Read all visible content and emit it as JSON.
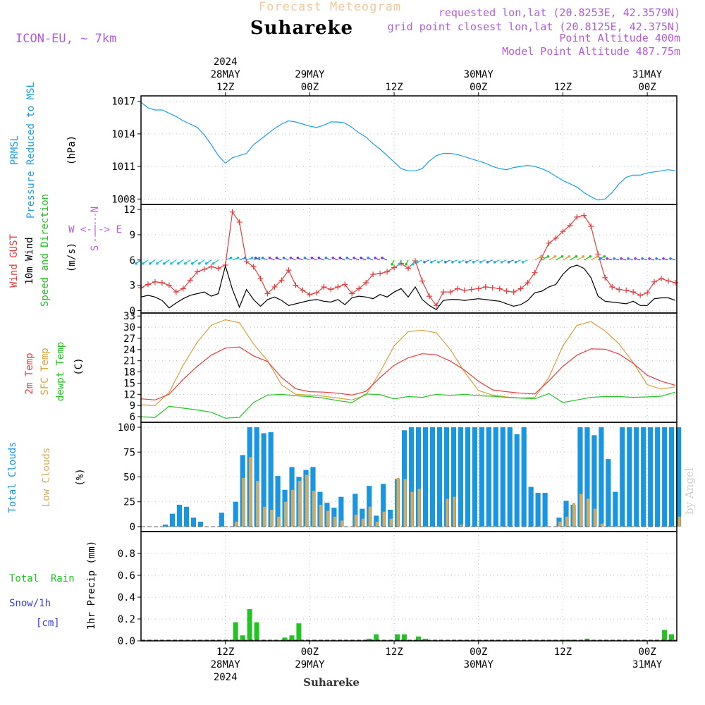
{
  "header": {
    "super_title": "Forecast Meteogram",
    "location": "Suhareke",
    "model": "ICON-EU, ~ 7km",
    "requested": "requested lon,lat (20.8253E, 42.3579N)",
    "grid_point": "grid point closest lon,lat (20.8125E, 42.375N)",
    "point_altitude": "Point Altitude 400m",
    "model_altitude": "Model Point Altitude 487.75m",
    "watermark": "by Angel",
    "footer": "Suhareke"
  },
  "colors": {
    "pressure": "#1a9ee8",
    "gust": "#e63c3c",
    "wind": "#000000",
    "t2m": "#e63c3c",
    "sfc": "#d9a13a",
    "dewpt": "#22c322",
    "total_clouds": "#1a96e0",
    "low_clouds": "#d4aa5c",
    "rain": "#22c322",
    "snow": "#3a3ae6",
    "purple": "#b45adc"
  },
  "time_axis": {
    "top_labels": [
      {
        "h": 12,
        "lines": [
          "2024",
          "28MAY",
          "12Z"
        ]
      },
      {
        "h": 24,
        "lines": [
          "29MAY",
          "00Z"
        ]
      },
      {
        "h": 36,
        "lines": [
          "12Z"
        ]
      },
      {
        "h": 48,
        "lines": [
          "30MAY",
          "00Z"
        ]
      },
      {
        "h": 60,
        "lines": [
          "12Z"
        ]
      },
      {
        "h": 72,
        "lines": [
          "31MAY",
          "00Z"
        ]
      }
    ],
    "bottom_labels": [
      {
        "h": 12,
        "lines": [
          "12Z",
          "28MAY",
          "2024"
        ]
      },
      {
        "h": 24,
        "lines": [
          "00Z",
          "29MAY"
        ]
      },
      {
        "h": 36,
        "lines": [
          "12Z"
        ]
      },
      {
        "h": 48,
        "lines": [
          "00Z",
          "30MAY"
        ]
      },
      {
        "h": 60,
        "lines": [
          "12Z"
        ]
      },
      {
        "h": 72,
        "lines": [
          "00Z",
          "31MAY"
        ]
      }
    ]
  },
  "panel_labels": {
    "pressure": [
      "PRMSL",
      "Pressure Reduced to MSL",
      "(hPa)"
    ],
    "wind": [
      "Wind GUST",
      "10m Wind",
      "Speed and Direction",
      "(m/s)"
    ],
    "compass": [
      "N",
      "S",
      "W <-|-> E"
    ],
    "temp": [
      "2m Temp",
      "SFC Temp",
      "dewpt Temp",
      "(C)"
    ],
    "clouds": [
      "Total Clouds",
      "Low Clouds",
      "(%)"
    ],
    "precip": [
      "Total  Rain",
      "Snow/1h",
      "[cm]",
      "1hr Precip (mm)"
    ]
  },
  "chart_data": [
    {
      "type": "line",
      "id": "pressure",
      "title": "PRMSL Pressure Reduced to MSL",
      "ylabel": "(hPa)",
      "ylim": [
        1007.5,
        1017.5
      ],
      "yticks": [
        1008,
        1011,
        1014,
        1017
      ],
      "x_hours": [
        0,
        1,
        2,
        3,
        4,
        5,
        6,
        7,
        8,
        9,
        10,
        11,
        12,
        13,
        14,
        15,
        16,
        17,
        18,
        19,
        20,
        21,
        22,
        23,
        24,
        25,
        26,
        27,
        28,
        29,
        30,
        31,
        32,
        33,
        34,
        35,
        36,
        37,
        38,
        39,
        40,
        41,
        42,
        43,
        44,
        45,
        46,
        47,
        48,
        49,
        50,
        51,
        52,
        53,
        54,
        55,
        56,
        57,
        58,
        59,
        60,
        61,
        62,
        63,
        64,
        65,
        66,
        67,
        68,
        69,
        70,
        71,
        72,
        73,
        74,
        75,
        76
      ],
      "values": [
        1016.9,
        1016.4,
        1016.2,
        1016.2,
        1015.9,
        1015.6,
        1015.2,
        1014.9,
        1014.6,
        1013.9,
        1013.0,
        1012.0,
        1011.3,
        1011.8,
        1012.0,
        1012.2,
        1013.0,
        1013.5,
        1014.0,
        1014.5,
        1014.9,
        1015.2,
        1015.1,
        1014.9,
        1014.7,
        1014.6,
        1014.8,
        1015.1,
        1015.1,
        1015.0,
        1014.6,
        1014.1,
        1013.7,
        1013.1,
        1012.6,
        1012.0,
        1011.4,
        1010.8,
        1010.6,
        1010.6,
        1010.8,
        1011.5,
        1012.0,
        1012.2,
        1012.2,
        1012.1,
        1011.9,
        1011.7,
        1011.5,
        1011.3,
        1011.0,
        1010.8,
        1010.7,
        1010.9,
        1011.0,
        1011.1,
        1011.0,
        1010.8,
        1010.5,
        1010.1,
        1009.7,
        1009.4,
        1009.1,
        1008.6,
        1008.2,
        1007.9,
        1008.0,
        1008.6,
        1009.4,
        1010.0,
        1010.2,
        1010.2,
        1010.4,
        1010.5,
        1010.6,
        1010.7,
        1010.6
      ]
    },
    {
      "type": "line",
      "id": "wind",
      "title": "Wind GUST / 10m Wind Speed and Direction",
      "ylabel": "(m/s)",
      "ylim": [
        -0.3,
        12.6
      ],
      "yticks": [
        0,
        3,
        6,
        9,
        12
      ],
      "x_hours": [
        0,
        1,
        2,
        3,
        4,
        5,
        6,
        7,
        8,
        9,
        10,
        11,
        12,
        13,
        14,
        15,
        16,
        17,
        18,
        19,
        20,
        21,
        22,
        23,
        24,
        25,
        26,
        27,
        28,
        29,
        30,
        31,
        32,
        33,
        34,
        35,
        36,
        37,
        38,
        39,
        40,
        41,
        42,
        43,
        44,
        45,
        46,
        47,
        48,
        49,
        50,
        51,
        52,
        53,
        54,
        55,
        56,
        57,
        58,
        59,
        60,
        61,
        62,
        63,
        64,
        65,
        66,
        67,
        68,
        69,
        70,
        71,
        72,
        73,
        74,
        75,
        76
      ],
      "series": [
        {
          "name": "Wind GUST",
          "marker": "+",
          "values": [
            2.7,
            3.1,
            3.4,
            3.3,
            3.0,
            2.2,
            2.6,
            3.6,
            4.6,
            4.9,
            5.2,
            5.0,
            5.4,
            11.7,
            10.5,
            5.8,
            5.2,
            3.8,
            2.0,
            2.8,
            3.6,
            4.8,
            3.0,
            2.4,
            1.9,
            2.1,
            2.8,
            2.5,
            2.8,
            3.1,
            2.0,
            2.6,
            3.3,
            4.3,
            4.4,
            4.6,
            5.1,
            5.6,
            5.0,
            5.9,
            3.5,
            1.7,
            0.6,
            2.2,
            2.2,
            2.6,
            2.4,
            2.5,
            2.6,
            2.8,
            2.7,
            2.6,
            2.3,
            2.2,
            2.6,
            3.3,
            4.5,
            6.3,
            8.0,
            8.6,
            9.4,
            10.1,
            11.1,
            11.3,
            10.0,
            6.7,
            3.9,
            2.8,
            2.5,
            2.4,
            2.2,
            1.8,
            2.1,
            3.4,
            3.8,
            3.5,
            3.3
          ]
        },
        {
          "name": "10m Wind",
          "marker": "",
          "values": [
            1.6,
            1.8,
            1.6,
            1.2,
            0.3,
            0.9,
            1.4,
            1.8,
            2.0,
            2.2,
            1.7,
            2.0,
            5.3,
            2.5,
            0.4,
            2.5,
            1.3,
            0.5,
            1.3,
            1.6,
            1.2,
            0.6,
            0.8,
            1.0,
            1.2,
            1.3,
            1.1,
            1.0,
            1.3,
            0.7,
            1.5,
            1.7,
            1.6,
            1.4,
            1.9,
            1.6,
            2.2,
            2.6,
            1.6,
            2.8,
            1.3,
            0.6,
            0.1,
            1.2,
            1.3,
            1.3,
            1.2,
            1.3,
            1.4,
            1.3,
            1.2,
            1.1,
            0.8,
            0.5,
            0.7,
            1.2,
            2.1,
            2.3,
            2.8,
            3.1,
            4.3,
            5.1,
            5.4,
            5.0,
            3.9,
            1.7,
            1.1,
            1.0,
            0.9,
            0.8,
            1.1,
            0.6,
            0.6,
            1.4,
            1.5,
            1.5,
            1.2
          ]
        }
      ],
      "wind_direction_arrows": "colored barbs along 6 m/s line"
    },
    {
      "type": "line",
      "id": "temperature",
      "title": "2m Temp / SFC Temp / dewpt Temp",
      "ylabel": "(C)",
      "ylim": [
        4.5,
        33.8
      ],
      "yticks": [
        6,
        9,
        12,
        15,
        18,
        21,
        24,
        27,
        30,
        33
      ],
      "x_hours": [
        0,
        2,
        4,
        6,
        8,
        10,
        12,
        14,
        16,
        18,
        20,
        22,
        24,
        26,
        28,
        30,
        32,
        34,
        36,
        38,
        40,
        42,
        44,
        46,
        48,
        50,
        52,
        54,
        56,
        58,
        60,
        62,
        64,
        66,
        68,
        70,
        72,
        74,
        76
      ],
      "series": [
        {
          "name": "2m Temp",
          "values": [
            10.8,
            10.5,
            12.0,
            16.0,
            19.5,
            22.5,
            24.4,
            24.7,
            22.3,
            20.8,
            16.5,
            13.5,
            12.7,
            12.6,
            12.3,
            11.8,
            12.8,
            16.5,
            19.8,
            21.8,
            22.9,
            22.6,
            20.9,
            18.5,
            15.5,
            13.2,
            12.7,
            12.3,
            12.1,
            15.6,
            19.5,
            22.5,
            24.2,
            24.1,
            22.8,
            20.3,
            17.1,
            15.5,
            14.4
          ]
        },
        {
          "name": "SFC Temp",
          "values": [
            9.2,
            9.0,
            12.5,
            19.8,
            26.0,
            30.5,
            32.0,
            31.2,
            25.5,
            21.0,
            14.5,
            12.0,
            11.8,
            11.5,
            11.0,
            10.5,
            11.8,
            18.0,
            25.0,
            28.8,
            29.2,
            28.5,
            24.0,
            18.0,
            13.0,
            11.8,
            11.3,
            11.0,
            11.2,
            16.5,
            25.0,
            30.5,
            31.5,
            29.0,
            25.5,
            20.5,
            14.6,
            13.4,
            14.0
          ]
        },
        {
          "name": "dewpt Temp",
          "values": [
            6.0,
            5.8,
            8.8,
            8.3,
            7.8,
            7.2,
            5.6,
            5.8,
            9.8,
            11.8,
            12.0,
            11.6,
            11.4,
            11.0,
            10.3,
            9.8,
            12.1,
            11.9,
            10.8,
            11.4,
            11.2,
            12.0,
            11.7,
            12.0,
            11.6,
            11.5,
            11.2,
            11.0,
            10.8,
            12.2,
            9.8,
            10.5,
            11.2,
            11.4,
            11.4,
            11.2,
            11.3,
            11.5,
            12.6
          ]
        }
      ]
    },
    {
      "type": "bar",
      "id": "clouds",
      "title": "Total Clouds / Low Clouds",
      "ylabel": "(%)",
      "ylim": [
        -5,
        105
      ],
      "yticks": [
        0,
        25,
        50,
        75,
        100
      ],
      "x_hours": [
        0,
        1,
        2,
        3,
        4,
        5,
        6,
        7,
        8,
        9,
        10,
        11,
        12,
        13,
        14,
        15,
        16,
        17,
        18,
        19,
        20,
        21,
        22,
        23,
        24,
        25,
        26,
        27,
        28,
        29,
        30,
        31,
        32,
        33,
        34,
        35,
        36,
        37,
        38,
        39,
        40,
        41,
        42,
        43,
        44,
        45,
        46,
        47,
        48,
        49,
        50,
        51,
        52,
        53,
        54,
        55,
        56,
        57,
        58,
        59,
        60,
        61,
        62,
        63,
        64,
        65,
        66,
        67,
        68,
        69,
        70,
        71,
        72,
        73,
        74,
        75,
        76
      ],
      "series": [
        {
          "name": "Total Clouds",
          "values": [
            0,
            0,
            0,
            2,
            13,
            22,
            20,
            9,
            5,
            0,
            0,
            14,
            0,
            25,
            72,
            100,
            100,
            94,
            95,
            51,
            37,
            60,
            50,
            57,
            60,
            35,
            24,
            19,
            30,
            0,
            33,
            18,
            41,
            11,
            43,
            17,
            48,
            97,
            100,
            100,
            100,
            100,
            100,
            100,
            100,
            100,
            100,
            100,
            100,
            100,
            100,
            100,
            100,
            93,
            100,
            40,
            34,
            34,
            0,
            9,
            26,
            22,
            100,
            100,
            92,
            100,
            68,
            35,
            100,
            100,
            100,
            100,
            100,
            100,
            100,
            100,
            100
          ]
        },
        {
          "name": "Low Clouds",
          "values": [
            0,
            0,
            0,
            0,
            0,
            0,
            0,
            0,
            0,
            0,
            0,
            0,
            0,
            5,
            49,
            70,
            46,
            20,
            17,
            10,
            25,
            37,
            46,
            52,
            36,
            22,
            16,
            10,
            6,
            0,
            12,
            8,
            20,
            5,
            15,
            8,
            49,
            48,
            35,
            38,
            0,
            0,
            0,
            28,
            30,
            2,
            0,
            0,
            0,
            0,
            0,
            0,
            0,
            0,
            0,
            0,
            0,
            0,
            0,
            5,
            10,
            24,
            33,
            28,
            18,
            3,
            0,
            0,
            0,
            0,
            0,
            0,
            0,
            0,
            0,
            0,
            10
          ]
        }
      ]
    },
    {
      "type": "bar",
      "id": "precip",
      "title": "Total Rain / Snow/1h",
      "ylabel": "1hr Precip (mm)",
      "ylim": [
        0,
        1.0
      ],
      "yticks": [
        0,
        0.2,
        0.4,
        0.6,
        0.8
      ],
      "x_hours": [
        0,
        1,
        2,
        3,
        4,
        5,
        6,
        7,
        8,
        9,
        10,
        11,
        12,
        13,
        14,
        15,
        16,
        17,
        18,
        19,
        20,
        21,
        22,
        23,
        24,
        25,
        26,
        27,
        28,
        29,
        30,
        31,
        32,
        33,
        34,
        35,
        36,
        37,
        38,
        39,
        40,
        41,
        42,
        43,
        44,
        45,
        46,
        47,
        48,
        49,
        50,
        51,
        52,
        53,
        54,
        55,
        56,
        57,
        58,
        59,
        60,
        61,
        62,
        63,
        64,
        65,
        66,
        67,
        68,
        69,
        70,
        71,
        72,
        73,
        74,
        75,
        76
      ],
      "series": [
        {
          "name": "Total Rain",
          "values": [
            0,
            0,
            0,
            0,
            0,
            0,
            0,
            0,
            0,
            0,
            0,
            0,
            0,
            0.17,
            0.05,
            0.29,
            0.17,
            0,
            0,
            0,
            0.03,
            0.05,
            0.16,
            0,
            0,
            0,
            0,
            0,
            0,
            0,
            0,
            0,
            0.02,
            0.06,
            0,
            0,
            0.06,
            0.06,
            0,
            0.04,
            0.02,
            0,
            0,
            0,
            0,
            0,
            0,
            0,
            0,
            0,
            0,
            0,
            0,
            0,
            0,
            0,
            0,
            0,
            0,
            0,
            0.01,
            0.01,
            0,
            0.02,
            0,
            0,
            0,
            0,
            0,
            0,
            0,
            0,
            0,
            0,
            0.1,
            0.06,
            0
          ]
        },
        {
          "name": "Snow/1h",
          "values": [
            0,
            0,
            0,
            0,
            0,
            0,
            0,
            0,
            0,
            0,
            0,
            0,
            0,
            0,
            0,
            0,
            0,
            0,
            0,
            0,
            0,
            0,
            0,
            0,
            0,
            0,
            0,
            0,
            0,
            0,
            0,
            0,
            0,
            0,
            0,
            0,
            0,
            0,
            0,
            0,
            0,
            0,
            0,
            0,
            0,
            0,
            0,
            0,
            0,
            0,
            0,
            0,
            0,
            0,
            0,
            0,
            0,
            0,
            0,
            0,
            0,
            0,
            0,
            0,
            0,
            0,
            0,
            0,
            0,
            0,
            0,
            0,
            0,
            0,
            0,
            0,
            0
          ]
        }
      ]
    }
  ]
}
